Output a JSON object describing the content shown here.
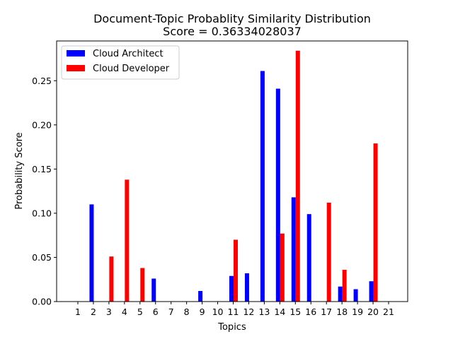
{
  "chart_data": {
    "type": "bar",
    "title": "Document-Topic Probablity Similarity Distribution",
    "subtitle": "Score = 0.36334028037",
    "xlabel": "Topics",
    "ylabel": "Probability Score",
    "categories": [
      "1",
      "2",
      "3",
      "4",
      "5",
      "6",
      "7",
      "8",
      "9",
      "10",
      "11",
      "12",
      "13",
      "14",
      "15",
      "16",
      "17",
      "18",
      "19",
      "20",
      "21"
    ],
    "ylim": [
      0,
      0.295
    ],
    "yticks": [
      0.0,
      0.05,
      0.1,
      0.15,
      0.2,
      0.25
    ],
    "ytick_labels": [
      "0.00",
      "0.05",
      "0.10",
      "0.15",
      "0.20",
      "0.25"
    ],
    "legend_position": "top-left",
    "series": [
      {
        "name": "Cloud Architect",
        "color": "#0000ff",
        "values": [
          0,
          0.11,
          0,
          0,
          0,
          0.026,
          0,
          0,
          0.012,
          0,
          0.029,
          0.032,
          0.261,
          0.241,
          0.118,
          0.099,
          0,
          0.017,
          0.014,
          0.023,
          0
        ]
      },
      {
        "name": "Cloud Developer",
        "color": "#ff0000",
        "values": [
          0,
          0,
          0.051,
          0.138,
          0.038,
          0,
          0,
          0,
          0,
          0,
          0.07,
          0,
          0,
          0.077,
          0.284,
          0,
          0.112,
          0.036,
          0,
          0.179,
          0
        ]
      }
    ]
  }
}
